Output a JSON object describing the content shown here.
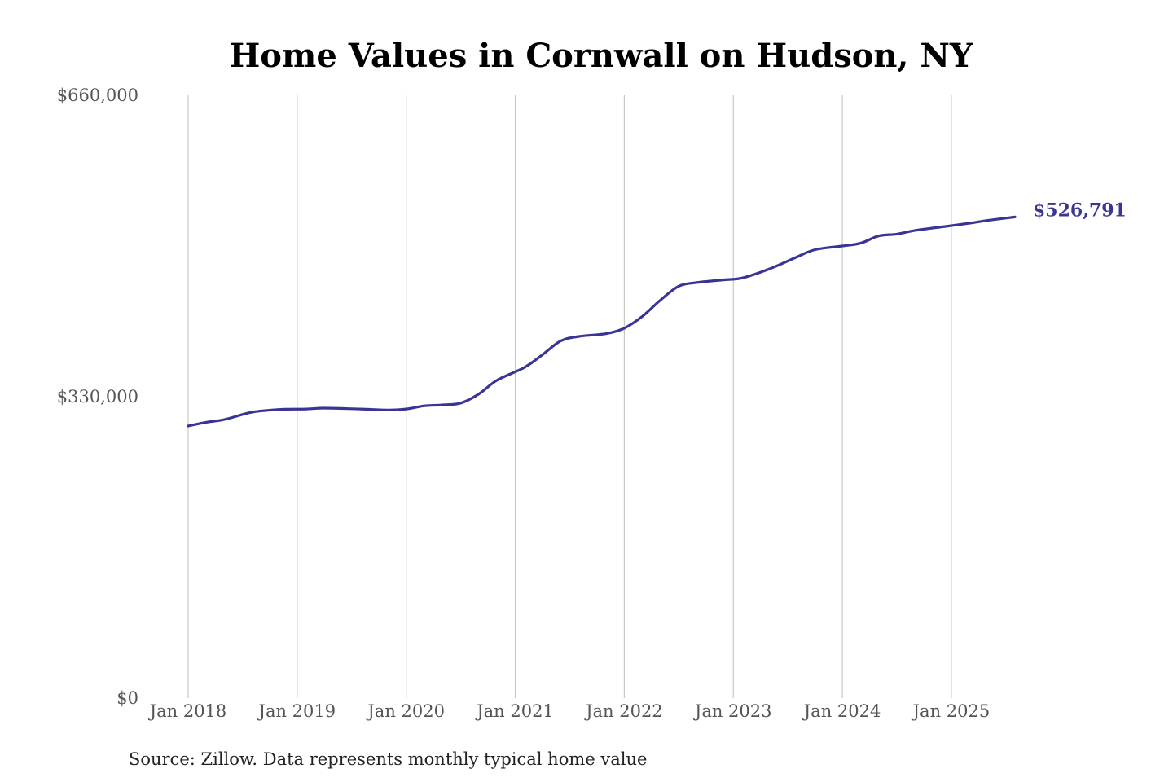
{
  "chart_data": {
    "type": "line",
    "title": "Home Values in Cornwall on Hudson, NY",
    "xlabel": "",
    "ylabel": "",
    "ylim": [
      0,
      660000
    ],
    "yticks": [
      0,
      330000,
      660000
    ],
    "ytick_labels": [
      "$0",
      "$330,000",
      "$660,000"
    ],
    "xlim": [
      "2018-01",
      "2025-08"
    ],
    "xticks": [
      "2018-01",
      "2019-01",
      "2020-01",
      "2021-01",
      "2022-01",
      "2023-01",
      "2024-01",
      "2025-01"
    ],
    "xtick_labels": [
      "Jan 2018",
      "Jan 2019",
      "Jan 2020",
      "Jan 2021",
      "Jan 2022",
      "Jan 2023",
      "Jan 2024",
      "Jan 2025"
    ],
    "grid": {
      "vertical": true,
      "horizontal": false
    },
    "series": [
      {
        "color": "#3a3594",
        "end_label": "$526,791",
        "points": [
          {
            "x": "2018-01",
            "y": 298000
          },
          {
            "x": "2018-03",
            "y": 302000
          },
          {
            "x": "2018-05",
            "y": 305000
          },
          {
            "x": "2018-08",
            "y": 313000
          },
          {
            "x": "2018-11",
            "y": 316000
          },
          {
            "x": "2019-02",
            "y": 316500
          },
          {
            "x": "2019-04",
            "y": 317500
          },
          {
            "x": "2019-08",
            "y": 316500
          },
          {
            "x": "2019-11",
            "y": 315500
          },
          {
            "x": "2020-01",
            "y": 316500
          },
          {
            "x": "2020-03",
            "y": 320000
          },
          {
            "x": "2020-05",
            "y": 321000
          },
          {
            "x": "2020-07",
            "y": 323000
          },
          {
            "x": "2020-09",
            "y": 333000
          },
          {
            "x": "2020-11",
            "y": 348000
          },
          {
            "x": "2021-02",
            "y": 362000
          },
          {
            "x": "2021-04",
            "y": 376000
          },
          {
            "x": "2021-06",
            "y": 391000
          },
          {
            "x": "2021-08",
            "y": 396000
          },
          {
            "x": "2021-11",
            "y": 399000
          },
          {
            "x": "2022-01",
            "y": 405000
          },
          {
            "x": "2022-03",
            "y": 418000
          },
          {
            "x": "2022-05",
            "y": 436000
          },
          {
            "x": "2022-07",
            "y": 451000
          },
          {
            "x": "2022-09",
            "y": 455000
          },
          {
            "x": "2022-12",
            "y": 458000
          },
          {
            "x": "2023-02",
            "y": 460000
          },
          {
            "x": "2023-05",
            "y": 470000
          },
          {
            "x": "2023-08",
            "y": 483000
          },
          {
            "x": "2023-10",
            "y": 491000
          },
          {
            "x": "2024-01",
            "y": 495000
          },
          {
            "x": "2024-03",
            "y": 498000
          },
          {
            "x": "2024-05",
            "y": 506000
          },
          {
            "x": "2024-07",
            "y": 508000
          },
          {
            "x": "2024-09",
            "y": 512000
          },
          {
            "x": "2024-12",
            "y": 516000
          },
          {
            "x": "2025-03",
            "y": 520000
          },
          {
            "x": "2025-05",
            "y": 523000
          },
          {
            "x": "2025-08",
            "y": 526791
          }
        ]
      }
    ],
    "annotations": [
      "Source: Zillow. Data represents monthly typical home value"
    ]
  }
}
